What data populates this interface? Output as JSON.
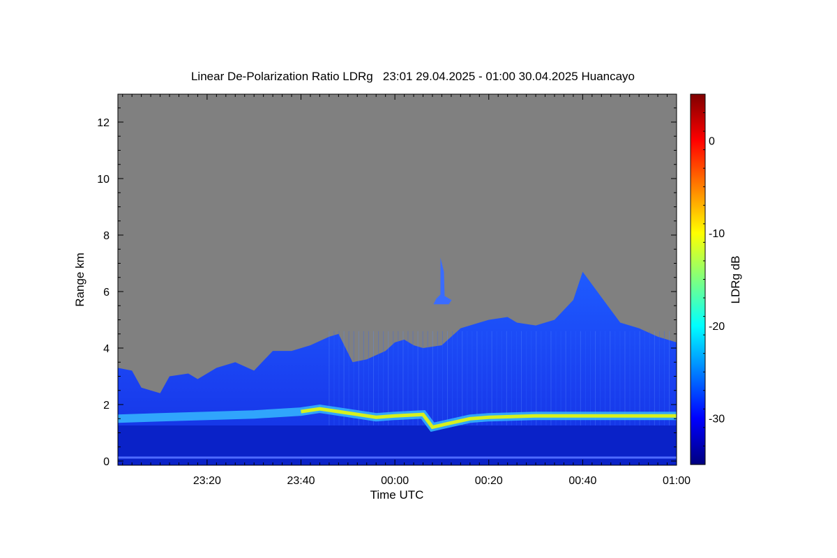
{
  "chart_data": {
    "type": "heatmap",
    "title": "Linear De-Polarization Ratio LDRg   23:01 29.04.2025 - 01:00 30.04.2025 Huancayo",
    "xlabel": "Time UTC",
    "ylabel": "Range km",
    "x_ticks": [
      "23:20",
      "23:40",
      "00:00",
      "00:20",
      "00:40",
      "01:00"
    ],
    "x_tick_minutes": [
      20,
      40,
      60,
      80,
      100,
      120
    ],
    "xlim_minutes": [
      1,
      120
    ],
    "y_ticks": [
      "0",
      "2",
      "4",
      "6",
      "8",
      "10",
      "12"
    ],
    "ylim": [
      0,
      13
    ],
    "colorbar": {
      "label": "LDRg dB",
      "ticks": [
        "0",
        "-10",
        "-20",
        "-30"
      ],
      "range": [
        -35,
        5
      ]
    },
    "no_data_color": "#808080",
    "colormap": [
      "#00007f",
      "#0000ff",
      "#007fff",
      "#00ffff",
      "#7fff7f",
      "#ffff00",
      "#ff7f00",
      "#ff0000",
      "#7f0000"
    ],
    "cloud_top_km": [
      [
        1,
        3.3
      ],
      [
        4,
        3.2
      ],
      [
        6,
        2.6
      ],
      [
        10,
        2.4
      ],
      [
        12,
        3.0
      ],
      [
        16,
        3.1
      ],
      [
        18,
        2.9
      ],
      [
        22,
        3.3
      ],
      [
        26,
        3.5
      ],
      [
        30,
        3.2
      ],
      [
        34,
        3.9
      ],
      [
        38,
        3.9
      ],
      [
        42,
        4.1
      ],
      [
        46,
        4.4
      ],
      [
        48,
        4.5
      ],
      [
        51,
        3.5
      ],
      [
        54,
        3.6
      ],
      [
        58,
        3.9
      ],
      [
        60,
        4.2
      ],
      [
        62,
        4.3
      ],
      [
        64,
        4.1
      ],
      [
        66,
        4.0
      ],
      [
        70,
        4.1
      ],
      [
        74,
        4.7
      ],
      [
        78,
        4.9
      ],
      [
        80,
        5.0
      ],
      [
        84,
        5.1
      ],
      [
        86,
        4.9
      ],
      [
        90,
        4.8
      ],
      [
        94,
        5.0
      ],
      [
        98,
        5.7
      ],
      [
        100,
        6.7
      ],
      [
        104,
        5.8
      ],
      [
        108,
        4.9
      ],
      [
        112,
        4.7
      ],
      [
        116,
        4.4
      ],
      [
        120,
        4.2
      ]
    ],
    "boundary_layer_top_km": [
      [
        1,
        1.5
      ],
      [
        10,
        1.55
      ],
      [
        20,
        1.6
      ],
      [
        30,
        1.65
      ],
      [
        40,
        1.75
      ],
      [
        44,
        1.85
      ],
      [
        50,
        1.7
      ],
      [
        56,
        1.55
      ],
      [
        60,
        1.6
      ],
      [
        66,
        1.65
      ],
      [
        68,
        1.2
      ],
      [
        72,
        1.35
      ],
      [
        76,
        1.5
      ],
      [
        80,
        1.55
      ],
      [
        90,
        1.6
      ],
      [
        100,
        1.6
      ],
      [
        110,
        1.6
      ],
      [
        120,
        1.6
      ]
    ],
    "elevated_plume": {
      "time_minutes": 70,
      "range_km": [
        5.6,
        7.2
      ]
    }
  }
}
